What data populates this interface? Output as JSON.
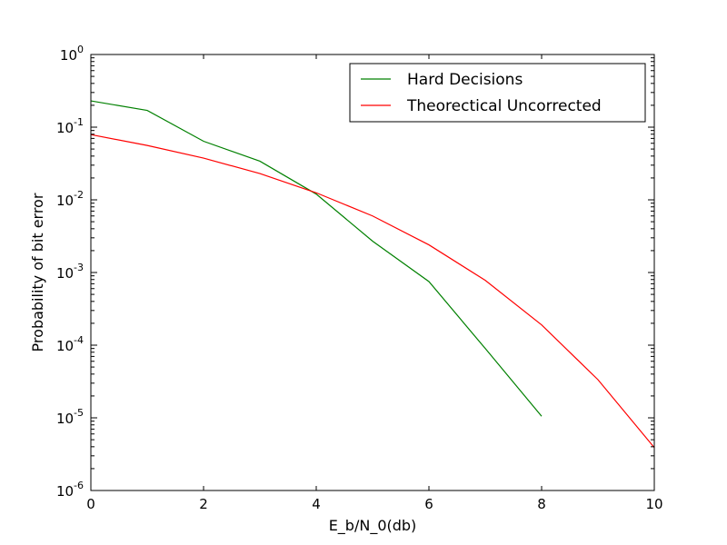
{
  "chart_data": {
    "type": "line",
    "title": "",
    "xlabel": "E_b/N_0(db)",
    "ylabel": "Probability of bit error",
    "xlim": [
      0,
      10
    ],
    "ylim": [
      1e-06,
      1
    ],
    "yscale": "log",
    "grid": false,
    "legend_position": "top-right",
    "xticks": [
      {
        "value": 0,
        "label": "0"
      },
      {
        "value": 2,
        "label": "2"
      },
      {
        "value": 4,
        "label": "4"
      },
      {
        "value": 6,
        "label": "6"
      },
      {
        "value": 8,
        "label": "8"
      },
      {
        "value": 10,
        "label": "10"
      }
    ],
    "yticks": [
      {
        "value": 1,
        "base": "10",
        "exp": "0"
      },
      {
        "value": 0.1,
        "base": "10",
        "exp": "-1"
      },
      {
        "value": 0.01,
        "base": "10",
        "exp": "-2"
      },
      {
        "value": 0.001,
        "base": "10",
        "exp": "-3"
      },
      {
        "value": 0.0001,
        "base": "10",
        "exp": "-4"
      },
      {
        "value": 1e-05,
        "base": "10",
        "exp": "-5"
      },
      {
        "value": 1e-06,
        "base": "10",
        "exp": "-6"
      }
    ],
    "series": [
      {
        "name": "Hard Decisions",
        "color": "#008000",
        "x": [
          0,
          1,
          2,
          3,
          4,
          5,
          6,
          7,
          8
        ],
        "y": [
          0.23,
          0.17,
          0.064,
          0.034,
          0.012,
          0.0027,
          0.00075,
          9e-05,
          1.05e-05
        ]
      },
      {
        "name": "Theorectical Uncorrected",
        "color": "#ff0000",
        "x": [
          0,
          1,
          2,
          3,
          4,
          5,
          6,
          7,
          8,
          9,
          10
        ],
        "y": [
          0.079,
          0.056,
          0.0375,
          0.023,
          0.0125,
          0.006,
          0.0024,
          0.00078,
          0.00019,
          3.35e-05,
          3.9e-06
        ]
      }
    ]
  }
}
